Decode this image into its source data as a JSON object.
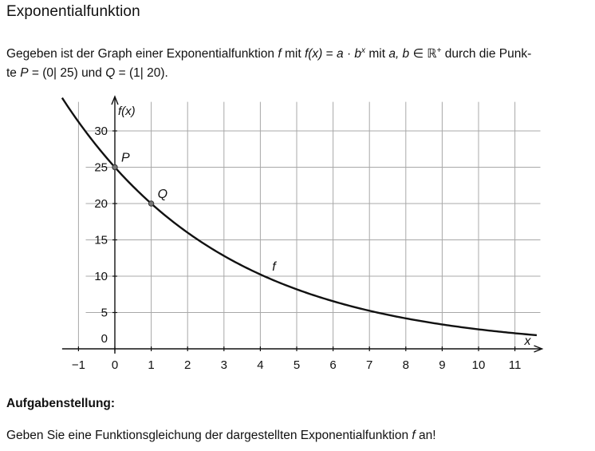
{
  "title": "Exponentialfunktion",
  "intro": {
    "line1_before_f": "Gegeben ist der Graph einer Exponentialfunktion ",
    "f": "f",
    "mit": " mit ",
    "formula_lhs": "f(x)",
    "formula_eq": " = ",
    "formula_a": "a",
    "formula_dot": " · ",
    "formula_b": "b",
    "formula_exp": "x",
    "mit2": " mit ",
    "ab": "a, b",
    "in_set": " ∈ ℝ",
    "plus": "+",
    "line1_end": " durch die Punk-",
    "line2_start": "te ",
    "P_name": "P",
    "P_coords": " = (0| 25) und ",
    "Q_name": "Q",
    "Q_coords": " = (1| 20)."
  },
  "chart_data": {
    "type": "line",
    "function": "f(x) = 25 · 0.8^x",
    "xlim": [
      -1.4,
      11.7
    ],
    "ylim": [
      -0.5,
      34
    ],
    "x_ticks": [
      -1,
      0,
      1,
      2,
      3,
      4,
      5,
      6,
      7,
      8,
      9,
      10,
      11
    ],
    "x_tick_labels": [
      "−1",
      "0",
      "1",
      "2",
      "3",
      "4",
      "5",
      "6",
      "7",
      "8",
      "9",
      "10",
      "11"
    ],
    "y_ticks": [
      5,
      10,
      15,
      20,
      25,
      30
    ],
    "y_tick_labels": [
      "5",
      "10",
      "15",
      "20",
      "25",
      "30"
    ],
    "origin_label": "0",
    "xlabel": "x",
    "ylabel": "f(x)",
    "curve_label": "f",
    "curve_label_x": 4.15,
    "grid": true,
    "points": [
      {
        "name": "P",
        "x": 0,
        "y": 25
      },
      {
        "name": "Q",
        "x": 1,
        "y": 20
      }
    ],
    "curve": {
      "a": 25,
      "b": 0.8,
      "x_start": -1.45,
      "x_end": 11.6
    }
  },
  "task": {
    "heading": "Aufgabenstellung:",
    "text_before": "Geben Sie eine Funktionsgleichung der dargestellten Exponentialfunktion ",
    "f": "f",
    "text_after": " an!"
  }
}
